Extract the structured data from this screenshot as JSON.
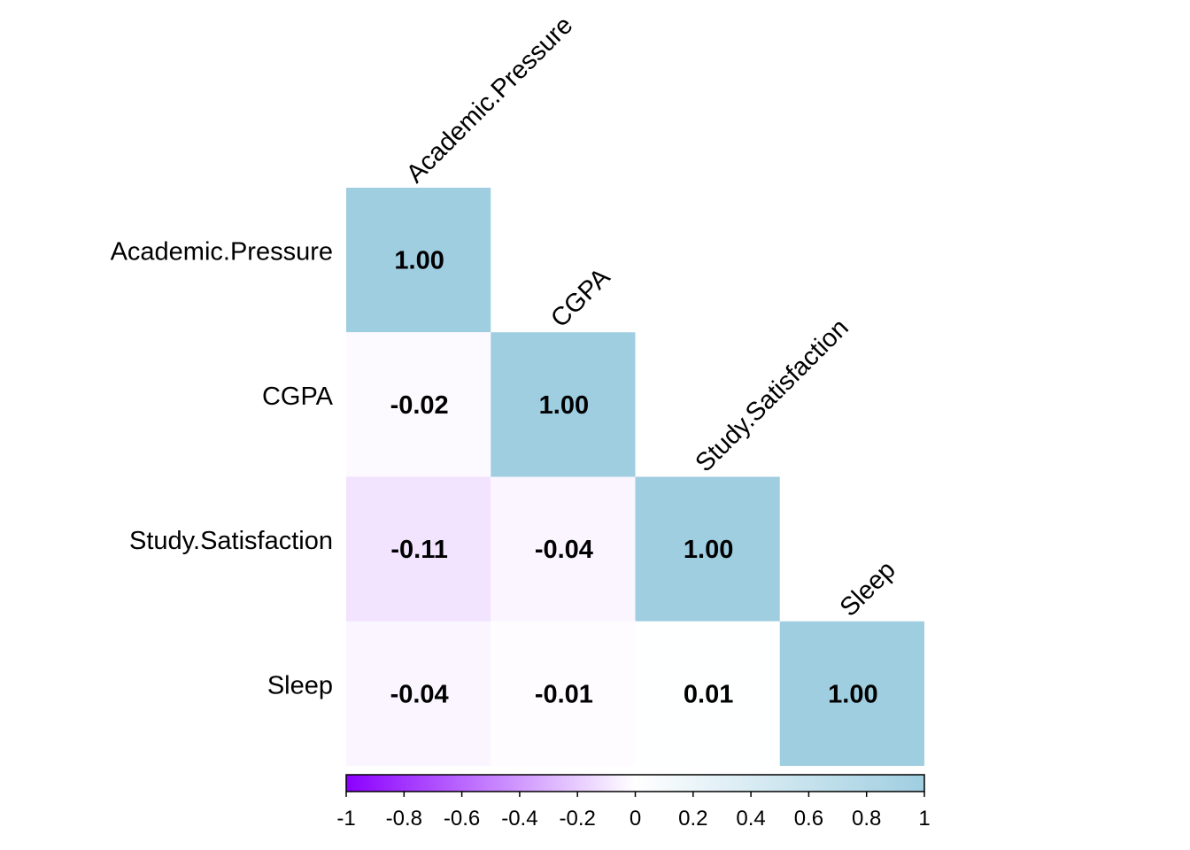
{
  "chart_data": {
    "type": "heatmap",
    "variables": [
      "Academic.Pressure",
      "CGPA",
      "Study.Satisfaction",
      "Sleep"
    ],
    "matrix": [
      [
        1.0,
        null,
        null,
        null
      ],
      [
        -0.02,
        1.0,
        null,
        null
      ],
      [
        -0.11,
        -0.04,
        1.0,
        null
      ],
      [
        -0.04,
        -0.01,
        0.01,
        1.0
      ]
    ],
    "cell_labels": [
      [
        "1.00",
        "",
        "",
        ""
      ],
      [
        "-0.02",
        "1.00",
        "",
        ""
      ],
      [
        "-0.11",
        "-0.04",
        "1.00",
        ""
      ],
      [
        "-0.04",
        "-0.01",
        "0.01",
        "1.00"
      ]
    ],
    "layout": "lower-triangle",
    "colorbar": {
      "range": [
        -1,
        1
      ],
      "ticks": [
        "-1",
        "-0.8",
        "-0.6",
        "-0.4",
        "-0.2",
        "0",
        "0.2",
        "0.4",
        "0.6",
        "0.8",
        "1"
      ],
      "colors": {
        "low": "#8B00FF",
        "mid": "#FFFFFF",
        "high": "#9FCEE1"
      },
      "placement": "bottom"
    }
  }
}
